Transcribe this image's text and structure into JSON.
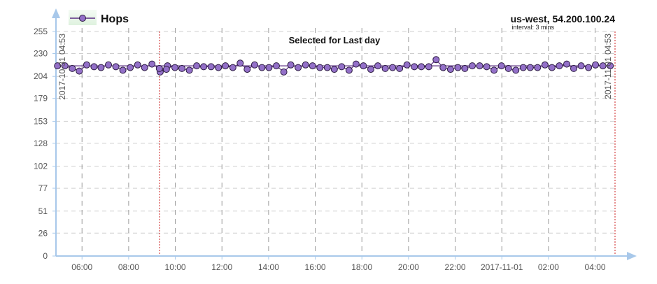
{
  "chart_data": {
    "type": "line",
    "legend": {
      "label": "Hops",
      "position": "top-left"
    },
    "title": "Selected for Last day",
    "host": "us-west, 54.200.100.24",
    "interval": "interval: 3 mins",
    "yticks": [
      "0",
      "26",
      "51",
      "77",
      "102",
      "128",
      "153",
      "179",
      "204",
      "230",
      "255"
    ],
    "ylim": [
      0,
      255
    ],
    "xticks": [
      "06:00",
      "08:00",
      "10:00",
      "12:00",
      "14:00",
      "16:00",
      "18:00",
      "20:00",
      "22:00",
      "2017-11-01",
      "02:00",
      "04:00"
    ],
    "xlim": [
      "2017-10-31 04:53",
      "2017-11-01 04:53"
    ],
    "range_markers": [
      "2017-10-31 04:53",
      "2017-11-01 04:53"
    ],
    "grid": true,
    "colors": {
      "line": "#5a2d82",
      "marker_fill": "#9370c8",
      "axis": "#a8c8ea",
      "range_marker": "#cc2222",
      "band": "#e6f5e6"
    },
    "series": [
      {
        "name": "Hops",
        "points": [
          [
            "09:21",
            209
          ],
          [
            "09:40",
            216
          ],
          [
            "09:59",
            214
          ],
          [
            "10:17",
            213
          ],
          [
            "10:36",
            211
          ],
          [
            "10:55",
            216
          ],
          [
            "11:13",
            215
          ],
          [
            "11:32",
            215
          ],
          [
            "11:51",
            214
          ],
          [
            "12:09",
            216
          ],
          [
            "12:28",
            214
          ],
          [
            "12:47",
            219
          ],
          [
            "13:05",
            212
          ],
          [
            "13:24",
            217
          ],
          [
            "13:43",
            214
          ],
          [
            "14:01",
            214
          ],
          [
            "14:20",
            216
          ],
          [
            "14:39",
            209
          ],
          [
            "14:57",
            217
          ],
          [
            "15:16",
            214
          ],
          [
            "15:35",
            217
          ],
          [
            "15:53",
            216
          ],
          [
            "16:12",
            214
          ],
          [
            "16:31",
            214
          ],
          [
            "16:49",
            212
          ],
          [
            "17:08",
            215
          ],
          [
            "17:27",
            211
          ],
          [
            "17:45",
            218
          ],
          [
            "18:04",
            216
          ],
          [
            "18:23",
            212
          ],
          [
            "18:41",
            216
          ],
          [
            "19:00",
            213
          ],
          [
            "19:19",
            214
          ],
          [
            "19:37",
            213
          ],
          [
            "19:56",
            217
          ],
          [
            "20:15",
            215
          ],
          [
            "20:33",
            215
          ],
          [
            "20:52",
            215
          ],
          [
            "21:11",
            223
          ],
          [
            "21:29",
            214
          ],
          [
            "21:48",
            212
          ],
          [
            "22:07",
            214
          ],
          [
            "22:25",
            213
          ],
          [
            "22:44",
            216
          ],
          [
            "23:03",
            216
          ],
          [
            "23:21",
            215
          ],
          [
            "23:40",
            211
          ],
          [
            "23:59",
            216
          ],
          [
            "00:17",
            213
          ],
          [
            "00:36",
            211
          ],
          [
            "00:55",
            214
          ],
          [
            "01:13",
            214
          ],
          [
            "01:32",
            214
          ],
          [
            "01:51",
            217
          ],
          [
            "02:09",
            214
          ],
          [
            "02:28",
            216
          ],
          [
            "02:47",
            218
          ],
          [
            "03:05",
            213
          ],
          [
            "03:24",
            216
          ],
          [
            "03:43",
            214
          ],
          [
            "04:01",
            217
          ],
          [
            "04:20",
            216
          ],
          [
            "04:39",
            216
          ],
          [
            "04:57",
            216
          ],
          [
            "05:16",
            216
          ],
          [
            "05:35",
            213
          ],
          [
            "05:53",
            210
          ],
          [
            "06:12",
            217
          ],
          [
            "06:31",
            215
          ],
          [
            "06:49",
            214
          ],
          [
            "07:08",
            217
          ],
          [
            "07:27",
            215
          ],
          [
            "07:45",
            211
          ],
          [
            "08:04",
            214
          ],
          [
            "08:23",
            217
          ],
          [
            "08:41",
            214
          ],
          [
            "09:00",
            218
          ],
          [
            "09:19",
            213
          ],
          [
            "09:37",
            212
          ]
        ]
      }
    ]
  }
}
